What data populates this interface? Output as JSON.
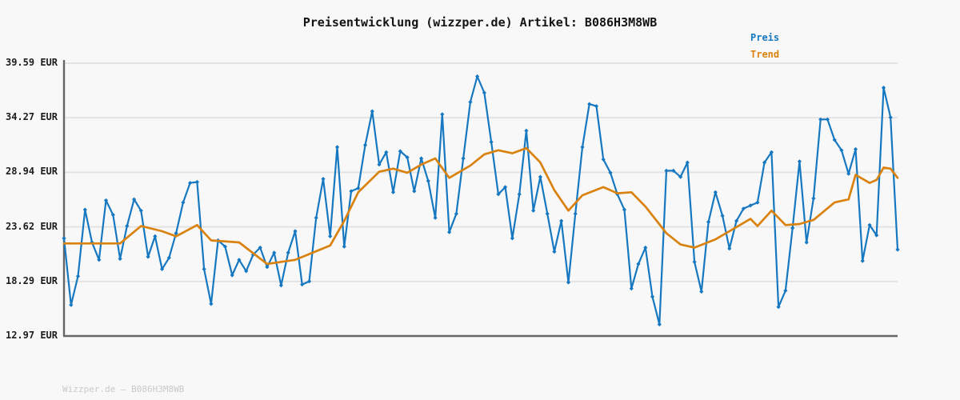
{
  "header": {
    "title": "Preisentwicklung (wizzper.de) Artikel: B086H3M8WB"
  },
  "legend": {
    "items": [
      {
        "label": "Preis",
        "color": "#1678c0"
      },
      {
        "label": "Trend",
        "color": "#d9820f"
      }
    ]
  },
  "footer": {
    "text": "Wizzper.de – B086H3M8WB"
  },
  "colors": {
    "background": "#f8f8f8",
    "gridline": "#e3e3e3",
    "axis": "#666666",
    "price": "#1678c0",
    "trend": "#d9820f",
    "tick_label": "#1c1c1c",
    "watermark": "#c9c9c9"
  },
  "chart_data": {
    "type": "line",
    "title": "Preisentwicklung (wizzper.de) Artikel: B086H3M8WB",
    "xlabel": "",
    "ylabel": "",
    "currency": "EUR",
    "ylim": [
      12.97,
      39.59
    ],
    "grid": "horizontal",
    "legend_position": "top-right",
    "x_tick_labels": [],
    "y_ticks": [
      {
        "value": 39.59,
        "label": "39.59 EUR"
      },
      {
        "value": 34.27,
        "label": "34.27 EUR"
      },
      {
        "value": 28.94,
        "label": "28.94 EUR"
      },
      {
        "value": 23.62,
        "label": "23.62 EUR"
      },
      {
        "value": 18.29,
        "label": "18.29 EUR"
      },
      {
        "value": 12.97,
        "label": "12.97 EUR"
      }
    ],
    "series": [
      {
        "name": "Preis",
        "style": "line+diamond-markers",
        "color": "#1678c0",
        "values": [
          22.5,
          16.0,
          18.8,
          25.3,
          22.1,
          20.4,
          26.2,
          24.8,
          20.5,
          23.7,
          26.3,
          25.2,
          20.7,
          22.7,
          19.5,
          20.6,
          23.0,
          26.0,
          27.9,
          28.0,
          19.5,
          16.1,
          22.3,
          21.7,
          18.9,
          20.4,
          19.3,
          20.9,
          21.6,
          19.7,
          21.1,
          17.9,
          21.1,
          23.2,
          18.0,
          18.3,
          24.5,
          28.3,
          22.7,
          31.4,
          21.7,
          27.1,
          27.4,
          31.6,
          34.9,
          29.7,
          30.9,
          27.0,
          31.0,
          30.4,
          27.1,
          30.3,
          28.1,
          24.5,
          34.6,
          23.1,
          24.9,
          30.3,
          35.8,
          38.3,
          36.7,
          31.9,
          26.8,
          27.5,
          22.5,
          26.8,
          33.0,
          25.2,
          28.5,
          24.9,
          21.2,
          24.2,
          18.2,
          24.9,
          31.4,
          35.6,
          35.4,
          30.2,
          28.9,
          26.8,
          25.3,
          17.6,
          20.0,
          21.6,
          16.8,
          14.1,
          29.1,
          29.1,
          28.5,
          29.9,
          20.2,
          17.3,
          24.1,
          27.0,
          24.7,
          21.5,
          24.2,
          25.4,
          25.7,
          26.0,
          29.9,
          30.9,
          15.8,
          17.4,
          23.5,
          30.0,
          22.1,
          26.4,
          34.1,
          34.1,
          32.1,
          31.1,
          28.8,
          31.2,
          20.3,
          23.8,
          22.8,
          37.2,
          34.3,
          21.4
        ]
      },
      {
        "name": "Trend",
        "style": "line",
        "color": "#d9820f",
        "points": [
          [
            0,
            22.0
          ],
          [
            8,
            22.0
          ],
          [
            11,
            23.7
          ],
          [
            14,
            23.2
          ],
          [
            16,
            22.7
          ],
          [
            19,
            23.8
          ],
          [
            21,
            22.3
          ],
          [
            25,
            22.1
          ],
          [
            29,
            20.0
          ],
          [
            33,
            20.4
          ],
          [
            38,
            21.8
          ],
          [
            40,
            24.2
          ],
          [
            42,
            27.0
          ],
          [
            45,
            29.0
          ],
          [
            47,
            29.3
          ],
          [
            49,
            28.9
          ],
          [
            51,
            29.7
          ],
          [
            53,
            30.3
          ],
          [
            55,
            28.4
          ],
          [
            58,
            29.6
          ],
          [
            60,
            30.7
          ],
          [
            62,
            31.1
          ],
          [
            64,
            30.8
          ],
          [
            66,
            31.3
          ],
          [
            68,
            29.9
          ],
          [
            70,
            27.2
          ],
          [
            72,
            25.2
          ],
          [
            74,
            26.7
          ],
          [
            77,
            27.5
          ],
          [
            79,
            26.9
          ],
          [
            81,
            27.0
          ],
          [
            83,
            25.6
          ],
          [
            86,
            23.0
          ],
          [
            88,
            21.9
          ],
          [
            90,
            21.6
          ],
          [
            93,
            22.4
          ],
          [
            95,
            23.2
          ],
          [
            98,
            24.4
          ],
          [
            99,
            23.7
          ],
          [
            101,
            25.2
          ],
          [
            103,
            23.8
          ],
          [
            105,
            23.9
          ],
          [
            107,
            24.3
          ],
          [
            110,
            26.0
          ],
          [
            112,
            26.3
          ],
          [
            113,
            28.7
          ],
          [
            115,
            27.9
          ],
          [
            116,
            28.2
          ],
          [
            117,
            29.4
          ],
          [
            118,
            29.3
          ],
          [
            119,
            28.4
          ]
        ]
      }
    ]
  }
}
